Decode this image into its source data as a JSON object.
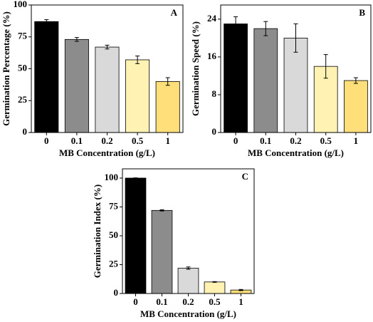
{
  "chart_data": [
    {
      "type": "bar",
      "panel_label": "A",
      "xlabel": "MB Concentration (g/L)",
      "ylabel": "Germination Percentage (%)",
      "categories": [
        "0",
        "0.1",
        "0.2",
        "0.5",
        "1"
      ],
      "values": [
        87,
        73,
        67,
        57,
        40
      ],
      "errors": [
        1.5,
        1.5,
        1.5,
        3,
        3
      ],
      "colors": [
        "#000000",
        "#8c8c8c",
        "#d9d9d9",
        "#fff2b3",
        "#ffdf7a"
      ],
      "ylim": [
        0,
        100
      ],
      "yticks": [
        0,
        25,
        50,
        75,
        100
      ]
    },
    {
      "type": "bar",
      "panel_label": "B",
      "xlabel": "MB Concentration (g/L)",
      "ylabel": "Germination Speed (%)",
      "categories": [
        "0",
        "0.1",
        "0.2",
        "0.5",
        "1"
      ],
      "values": [
        23,
        22,
        20,
        14,
        11
      ],
      "errors": [
        1.5,
        1.5,
        3,
        2.5,
        0.6
      ],
      "colors": [
        "#000000",
        "#8c8c8c",
        "#d9d9d9",
        "#fff2b3",
        "#ffdf7a"
      ],
      "ylim": [
        0,
        27
      ],
      "yticks": [
        0,
        8,
        16,
        24
      ]
    },
    {
      "type": "bar",
      "panel_label": "C",
      "xlabel": "MB Concentration (g/L)",
      "ylabel": "Germination Index (%)",
      "categories": [
        "0",
        "0.1",
        "0.2",
        "0.5",
        "1"
      ],
      "values": [
        100,
        72,
        22,
        10,
        3
      ],
      "errors": [
        0.2,
        0.5,
        1,
        0.3,
        0.5
      ],
      "colors": [
        "#000000",
        "#8c8c8c",
        "#d9d9d9",
        "#fff2b3",
        "#ffdf7a"
      ],
      "ylim": [
        0,
        108
      ],
      "yticks": [
        0,
        25,
        50,
        75,
        100
      ]
    }
  ]
}
